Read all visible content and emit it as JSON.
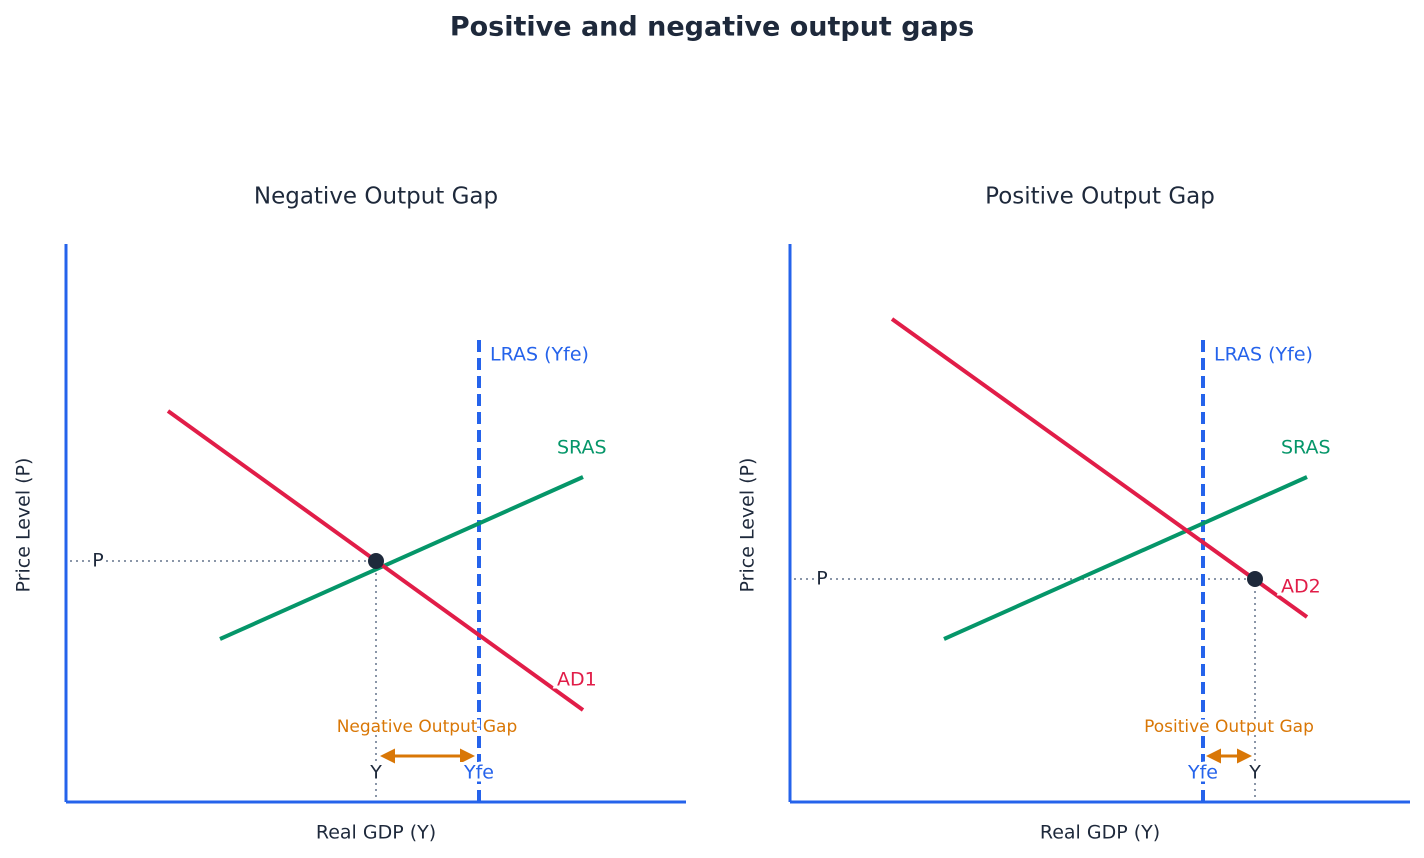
{
  "title": "Positive and negative output gaps",
  "panels": [
    {
      "title": "Negative Output Gap",
      "x_label": "Real GDP (Y)",
      "y_label": "Price Level (P)",
      "lras_label": "LRAS (Yfe)",
      "sras_label": "SRAS",
      "ad_label": "AD1",
      "price_label": "P",
      "gap_label": "Negative Output Gap",
      "output_label": "Y",
      "full_employment_label": "Yfe"
    },
    {
      "title": "Positive Output Gap",
      "x_label": "Real GDP (Y)",
      "y_label": "Price Level (P)",
      "lras_label": "LRAS (Yfe)",
      "sras_label": "SRAS",
      "ad_label": "AD2",
      "price_label": "P",
      "gap_label": "Positive Output Gap",
      "output_label": "Y",
      "full_employment_label": "Yfe"
    }
  ]
}
